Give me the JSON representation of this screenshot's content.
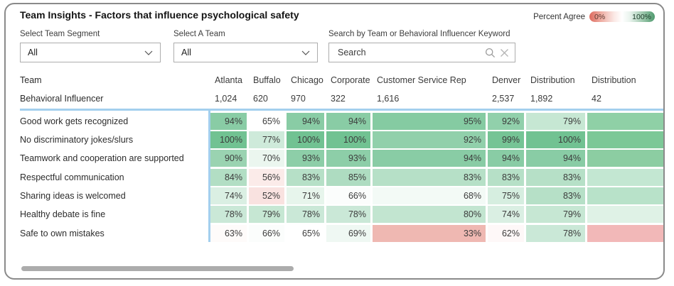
{
  "title": "Team Insights - Factors that influence psychological safety",
  "legend": {
    "label": "Percent Agree",
    "min": "0%",
    "max": "100%"
  },
  "filters": {
    "segment_label": "Select Team Segment",
    "segment_value": "All",
    "team_label": "Select A Team",
    "team_value": "All",
    "search_label": "Search by Team or Behavioral Influencer Keyword",
    "search_placeholder": "Search"
  },
  "matrix": {
    "corner_top": "Team",
    "corner_bottom": "Behavioral Influencer",
    "columns": [
      {
        "name": "Atlanta",
        "count": "1,024"
      },
      {
        "name": "Buffalo",
        "count": "620"
      },
      {
        "name": "Chicago",
        "count": "970"
      },
      {
        "name": "Corporate",
        "count": "322"
      },
      {
        "name": "Customer Service Rep",
        "count": "1,616"
      },
      {
        "name": "Denver",
        "count": "2,537"
      },
      {
        "name": "Distribution",
        "count": "1,892"
      },
      {
        "name": "Distribution",
        "count": "42"
      }
    ],
    "rows": [
      {
        "label": "Good work gets recognized",
        "values": [
          94,
          65,
          94,
          94,
          95,
          92,
          79,
          null
        ]
      },
      {
        "label": "No discriminatory jokes/slurs",
        "values": [
          100,
          77,
          100,
          100,
          92,
          99,
          100,
          null
        ]
      },
      {
        "label": "Teamwork and cooperation are supported",
        "values": [
          90,
          70,
          93,
          93,
          94,
          94,
          94,
          null
        ]
      },
      {
        "label": "Respectful communication",
        "values": [
          84,
          56,
          83,
          85,
          83,
          83,
          83,
          null
        ]
      },
      {
        "label": "Sharing ideas is welcomed",
        "values": [
          74,
          52,
          71,
          66,
          68,
          75,
          83,
          null
        ]
      },
      {
        "label": "Healthy debate is fine",
        "values": [
          78,
          79,
          78,
          78,
          80,
          74,
          79,
          null
        ]
      },
      {
        "label": "Safe to own mistakes",
        "values": [
          63,
          66,
          65,
          69,
          33,
          62,
          78,
          null
        ]
      }
    ],
    "clipped_column_colors": [
      "#8FD0A6",
      "#7CC897",
      "#8CCDA2",
      "#C3E7D2",
      "#B8E2C9",
      "#DFF2E6",
      "#F2B8B8"
    ]
  },
  "colors": {
    "scale_min": "#DF6E62",
    "scale_mid": "#FFFFFF",
    "scale_max": "#71C292",
    "scale_midpoint": 65,
    "accent_line": "#A3CFEE"
  },
  "chart_data": {
    "type": "heatmap",
    "title": "Team Insights - Factors that influence psychological safety",
    "legend": "Percent Agree",
    "columns": [
      "Atlanta",
      "Buffalo",
      "Chicago",
      "Corporate",
      "Customer Service Rep",
      "Denver",
      "Distribution",
      "Distribution"
    ],
    "column_counts": [
      1024,
      620,
      970,
      322,
      1616,
      2537,
      1892,
      42
    ],
    "rows": [
      "Good work gets recognized",
      "No discriminatory jokes/slurs",
      "Teamwork and cooperation are supported",
      "Respectful communication",
      "Sharing ideas is welcomed",
      "Healthy debate is fine",
      "Safe to own mistakes"
    ],
    "values": [
      [
        94,
        65,
        94,
        94,
        95,
        92,
        79,
        null
      ],
      [
        100,
        77,
        100,
        100,
        92,
        99,
        100,
        null
      ],
      [
        90,
        70,
        93,
        93,
        94,
        94,
        94,
        null
      ],
      [
        84,
        56,
        83,
        85,
        83,
        83,
        83,
        null
      ],
      [
        74,
        52,
        71,
        66,
        68,
        75,
        83,
        null
      ],
      [
        78,
        79,
        78,
        78,
        80,
        74,
        79,
        null
      ],
      [
        63,
        66,
        65,
        69,
        33,
        62,
        78,
        null
      ]
    ],
    "color_scale": {
      "min_label": "0%",
      "max_label": "100%",
      "min_color": "#DF6E62",
      "mid_color": "#FFFFFF",
      "max_color": "#71C292",
      "midpoint": 65
    }
  }
}
